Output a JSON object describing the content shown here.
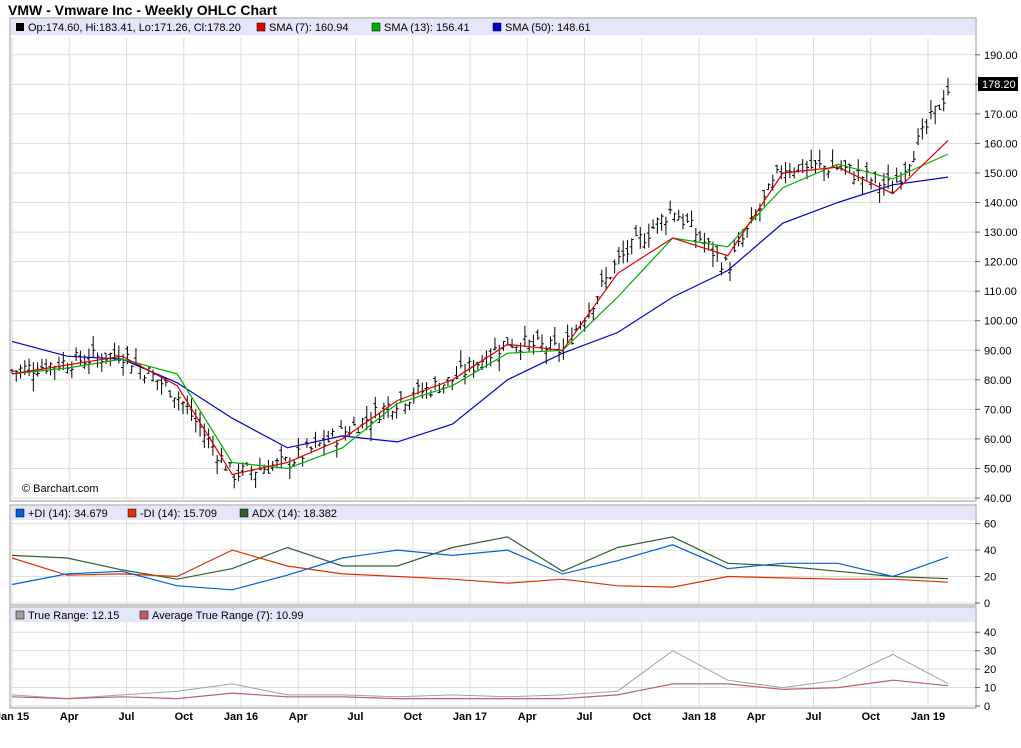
{
  "title": "VMW - Vmware Inc - Weekly OHLC Chart",
  "watermark": "© Barchart.com",
  "last_price_label": "178.20",
  "colors": {
    "ohlc": "#000000",
    "sma7": "#e00000",
    "sma13": "#00b000",
    "sma50": "#0000d0",
    "plus_di": "#0060e0",
    "minus_di": "#e03000",
    "adx": "#306030",
    "true_range": "#a0a0a0",
    "atr": "#c06060",
    "legend_band": "#e6e6fa",
    "grid": "#dddddd"
  },
  "panels": {
    "price": {
      "legend": [
        "Op:174.60, Hi:183.41, Lo:171.26, Cl:178.20",
        "SMA (7): 160.94",
        "SMA (13): 156.41",
        "SMA (50): 148.61"
      ],
      "yticks": [
        "40.00",
        "50.00",
        "60.00",
        "70.00",
        "80.00",
        "90.00",
        "100.00",
        "110.00",
        "120.00",
        "130.00",
        "140.00",
        "150.00",
        "160.00",
        "170.00",
        "180.00",
        "190.00"
      ]
    },
    "dmi": {
      "legend": [
        "+DI (14): 34.679",
        "-DI (14): 15.709",
        "ADX (14): 18.382"
      ],
      "yticks": [
        "0",
        "20",
        "40",
        "60"
      ]
    },
    "tr": {
      "legend": [
        "True Range: 12.15",
        "Average True Range (7): 10.99"
      ],
      "yticks": [
        "0",
        "10",
        "20",
        "30",
        "40"
      ]
    }
  },
  "x_labels": [
    "Jan 15",
    "Apr",
    "Jul",
    "Oct",
    "Jan 16",
    "Apr",
    "Jul",
    "Oct",
    "Jan 17",
    "Apr",
    "Jul",
    "Oct",
    "Jan 18",
    "Apr",
    "Jul",
    "Oct",
    "Jan 19"
  ],
  "chart_data": {
    "type": "line",
    "x": [
      "Jan 15",
      "Apr 15",
      "Jul 15",
      "Oct 15",
      "Jan 16",
      "Apr 16",
      "Jul 16",
      "Oct 16",
      "Jan 17",
      "Apr 17",
      "Jul 17",
      "Oct 17",
      "Jan 18",
      "Apr 18",
      "Jul 18",
      "Oct 18",
      "Jan 19",
      "Feb 19"
    ],
    "price_series": [
      {
        "name": "Close",
        "values": [
          83,
          86,
          89,
          75,
          48,
          52,
          62,
          73,
          80,
          93,
          90,
          120,
          138,
          118,
          152,
          152,
          145,
          178.2
        ]
      },
      {
        "name": "SMA (7)",
        "values": [
          82,
          85,
          88,
          78,
          48,
          52,
          60,
          73,
          80,
          92,
          90,
          116,
          128,
          122,
          150,
          152,
          143,
          160.94
        ]
      },
      {
        "name": "SMA (13)",
        "values": [
          82,
          84,
          87,
          82,
          52,
          50,
          57,
          72,
          78,
          89,
          90,
          108,
          128,
          125,
          145,
          153,
          148,
          156.41
        ]
      },
      {
        "name": "SMA (50)",
        "values": [
          93,
          88,
          87,
          79,
          67,
          57,
          61,
          59,
          65,
          80,
          89,
          96,
          108,
          117,
          133,
          140,
          146,
          148.61
        ]
      }
    ],
    "dmi_series": [
      {
        "name": "+DI (14)",
        "values": [
          14,
          22,
          24,
          13,
          10,
          21,
          34,
          40,
          36,
          40,
          22,
          32,
          44,
          26,
          30,
          30,
          20,
          34.679
        ]
      },
      {
        "name": "-DI (14)",
        "values": [
          34,
          21,
          22,
          20,
          40,
          28,
          22,
          20,
          18,
          15,
          18,
          13,
          12,
          20,
          19,
          18,
          18,
          15.709
        ]
      },
      {
        "name": "ADX (14)",
        "values": [
          36,
          34,
          25,
          18,
          26,
          42,
          28,
          28,
          42,
          50,
          24,
          42,
          50,
          30,
          28,
          24,
          20,
          18.382
        ]
      }
    ],
    "tr_series": [
      {
        "name": "True Range",
        "values": [
          6,
          4,
          6,
          8,
          12,
          6,
          6,
          5,
          6,
          5,
          6,
          8,
          30,
          14,
          10,
          14,
          28,
          12.15
        ]
      },
      {
        "name": "Average True Range (7)",
        "values": [
          5,
          4,
          5,
          4,
          7,
          5,
          5,
          4,
          4,
          4,
          4,
          6,
          12,
          12,
          9,
          10,
          14,
          10.99
        ]
      }
    ],
    "price_ylim": [
      40,
      195
    ],
    "dmi_ylim": [
      0,
      62
    ],
    "tr_ylim": [
      0,
      45
    ],
    "grid": true
  }
}
